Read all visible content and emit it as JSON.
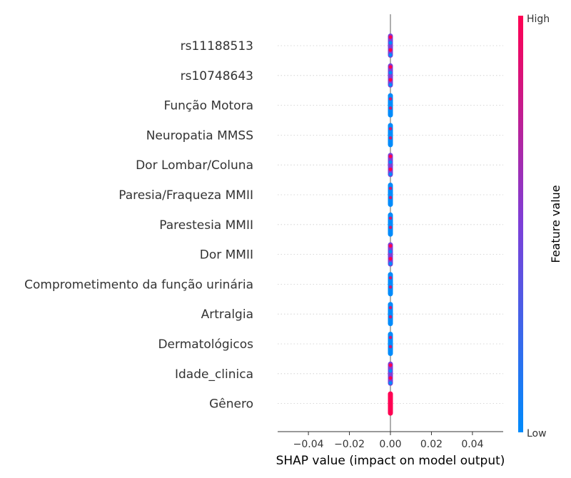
{
  "chart_data": {
    "type": "scatter",
    "subtype": "shap-beeswarm",
    "title": "",
    "xlabel": "SHAP value (impact on model output)",
    "xlim": [
      -0.055,
      0.055
    ],
    "xticks": [
      -0.04,
      -0.02,
      0.0,
      0.02,
      0.04
    ],
    "xtick_labels": [
      "−0.04",
      "−0.02",
      "0.00",
      "0.02",
      "0.04"
    ],
    "features": [
      {
        "name": "rs11188513",
        "color": "mixed"
      },
      {
        "name": "rs10748643",
        "color": "mixed"
      },
      {
        "name": "Função Motora",
        "color": "low"
      },
      {
        "name": "Neuropatia MMSS",
        "color": "low"
      },
      {
        "name": "Dor Lombar/Coluna",
        "color": "mixed"
      },
      {
        "name": "Paresia/Fraqueza MMII",
        "color": "low"
      },
      {
        "name": "Parestesia MMII",
        "color": "low"
      },
      {
        "name": "Dor MMII",
        "color": "mixed"
      },
      {
        "name": "Comprometimento da função urinária",
        "color": "low"
      },
      {
        "name": "Artralgia",
        "color": "low"
      },
      {
        "name": "Dermatológicos",
        "color": "low"
      },
      {
        "name": "Idade_clinica",
        "color": "mixed"
      },
      {
        "name": "Gênero",
        "color": "high"
      }
    ],
    "shap_values_all": 0.0,
    "colorbar": {
      "title": "Feature value",
      "high_label": "High",
      "low_label": "Low",
      "high_color": "#ff0052",
      "mid_color": "#7d3fd8",
      "low_color": "#008bfb"
    },
    "grid": "horizontal dotted per feature",
    "zero_line": true
  }
}
